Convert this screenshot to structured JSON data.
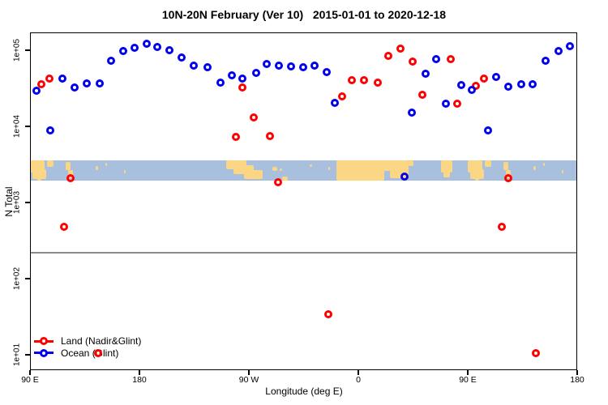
{
  "title": "10N-20N February (Ver 10)   2015-01-01 to 2020-12-18",
  "x_axis": {
    "label": "Longitude (deg E)",
    "ticks": [
      {
        "lon": 90,
        "label": "90 E"
      },
      {
        "lon": 180,
        "label": "180"
      },
      {
        "lon": 270,
        "label": "90 W"
      },
      {
        "lon": 360,
        "label": "0"
      },
      {
        "lon": 450,
        "label": "90 E"
      },
      {
        "lon": 540,
        "label": "180"
      }
    ]
  },
  "y_axis": {
    "label": "N Total",
    "ticks": [
      {
        "value": 100000,
        "label": "1e+05"
      },
      {
        "value": 10000,
        "label": "1e+04"
      },
      {
        "value": 1000,
        "label": "1e+03"
      },
      {
        "value": 100,
        "label": "1e+02"
      },
      {
        "value": 10,
        "label": "1e+01"
      }
    ]
  },
  "reference_line": {
    "value": 219,
    "color": "#8C8C8C"
  },
  "map_band": {
    "top_value": 3600,
    "bottom_value": 1950,
    "ocean_color": "#A9BFDE",
    "land_color": "#FBD685",
    "land_segments": [
      [
        90,
        102,
        0,
        0.6
      ],
      [
        92,
        103,
        0.45,
        0.92
      ],
      [
        104,
        109,
        0,
        0.32
      ],
      [
        96,
        99,
        0.6,
        1.0
      ],
      [
        119,
        123,
        0.1,
        0.5
      ],
      [
        121,
        125,
        0.5,
        0.9
      ],
      [
        144,
        146,
        0.3,
        0.5
      ],
      [
        152,
        153.5,
        0.15,
        0.3
      ],
      [
        167,
        168.5,
        0.5,
        0.65
      ],
      [
        251,
        268,
        0,
        0.45
      ],
      [
        257,
        274,
        0.25,
        0.7
      ],
      [
        266,
        281,
        0.5,
        0.95
      ],
      [
        289,
        293,
        0.35,
        0.55
      ],
      [
        295,
        297,
        0.4,
        0.55
      ],
      [
        297,
        302,
        0.82,
        1.0
      ],
      [
        320,
        322,
        0.2,
        0.35
      ],
      [
        335,
        336.5,
        0.35,
        0.5
      ],
      [
        342,
        401,
        0,
        0.55
      ],
      [
        342,
        381,
        0.5,
        1.0
      ],
      [
        386,
        401,
        0.5,
        0.9
      ],
      [
        401,
        405,
        0,
        0.3
      ],
      [
        428,
        437,
        0,
        0.6
      ],
      [
        430,
        435,
        0.5,
        0.85
      ],
      [
        450,
        462,
        0,
        0.6
      ],
      [
        452,
        463,
        0.45,
        0.92
      ],
      [
        464,
        469,
        0,
        0.32
      ],
      [
        456,
        459,
        0.6,
        1.0
      ],
      [
        479,
        483,
        0.1,
        0.5
      ],
      [
        481,
        485,
        0.5,
        0.9
      ],
      [
        504,
        506,
        0.3,
        0.5
      ],
      [
        512,
        513.5,
        0.15,
        0.3
      ],
      [
        527,
        528.5,
        0.5,
        0.65
      ]
    ]
  },
  "legend": {
    "items": [
      {
        "label": "Land (Nadir&Glint)",
        "color": "#FF0000"
      },
      {
        "label": "Ocean (Glint)",
        "color": "#0000EE"
      }
    ]
  },
  "chart_data": {
    "type": "scatter",
    "title": "10N-20N February (Ver 10)   2015-01-01 to 2020-12-18",
    "xlabel": "Longitude (deg E)",
    "ylabel": "N Total",
    "x_axis_degrees_east": [
      90,
      540
    ],
    "y_scale": "log10",
    "ylim": [
      6,
      171000
    ],
    "legend_position": "bottom-left",
    "grid": false,
    "series": [
      {
        "name": "Land (Nadir&Glint)",
        "color": "#FF0000",
        "points": [
          [
            99.3,
            35700
          ],
          [
            106,
            42500
          ],
          [
            259.3,
            7280
          ],
          [
            264.7,
            32400
          ],
          [
            274,
            13100
          ],
          [
            287.3,
            7450
          ],
          [
            346.7,
            24800
          ],
          [
            354.7,
            40400
          ],
          [
            364.7,
            40400
          ],
          [
            376,
            37500
          ],
          [
            384.7,
            84300
          ],
          [
            394.7,
            105000
          ],
          [
            404.7,
            71000
          ],
          [
            412.7,
            26000
          ],
          [
            436,
            76400
          ],
          [
            441.3,
            19900
          ],
          [
            456.7,
            34100
          ],
          [
            463.3,
            42500
          ],
          [
            123.3,
            2085
          ],
          [
            294,
            1845
          ],
          [
            483.3,
            2085
          ],
          [
            118,
            480
          ],
          [
            478,
            480
          ],
          [
            335.3,
            34
          ],
          [
            145.7,
            10.6
          ],
          [
            505.7,
            10.6
          ]
        ]
      },
      {
        "name": "Ocean (Glint)",
        "color": "#0000EE",
        "points": [
          [
            95.3,
            29400
          ],
          [
            106.7,
            8850
          ],
          [
            116.7,
            42500
          ],
          [
            126.7,
            32400
          ],
          [
            136.7,
            36600
          ],
          [
            147.3,
            36600
          ],
          [
            156.7,
            72800
          ],
          [
            166.7,
            97500
          ],
          [
            176,
            107600
          ],
          [
            186,
            121600
          ],
          [
            194.7,
            110400
          ],
          [
            204.7,
            100000
          ],
          [
            214.7,
            80200
          ],
          [
            224.7,
            62800
          ],
          [
            236,
            59800
          ],
          [
            246.7,
            37500
          ],
          [
            256,
            46800
          ],
          [
            264.7,
            42500
          ],
          [
            276,
            50300
          ],
          [
            284.7,
            65900
          ],
          [
            294.7,
            62800
          ],
          [
            304.7,
            61200
          ],
          [
            314.7,
            59800
          ],
          [
            324,
            62800
          ],
          [
            334,
            51600
          ],
          [
            340.7,
            20400
          ],
          [
            398,
            2190
          ],
          [
            404,
            15200
          ],
          [
            415.3,
            49100
          ],
          [
            424,
            76400
          ],
          [
            432,
            19900
          ],
          [
            444.7,
            34900
          ],
          [
            453.3,
            30100
          ],
          [
            466.7,
            8850
          ],
          [
            473.3,
            44600
          ],
          [
            483.3,
            33200
          ],
          [
            494,
            35700
          ],
          [
            503.3,
            35700
          ],
          [
            514,
            72800
          ],
          [
            524.7,
            97500
          ],
          [
            534,
            113000
          ]
        ]
      }
    ]
  }
}
